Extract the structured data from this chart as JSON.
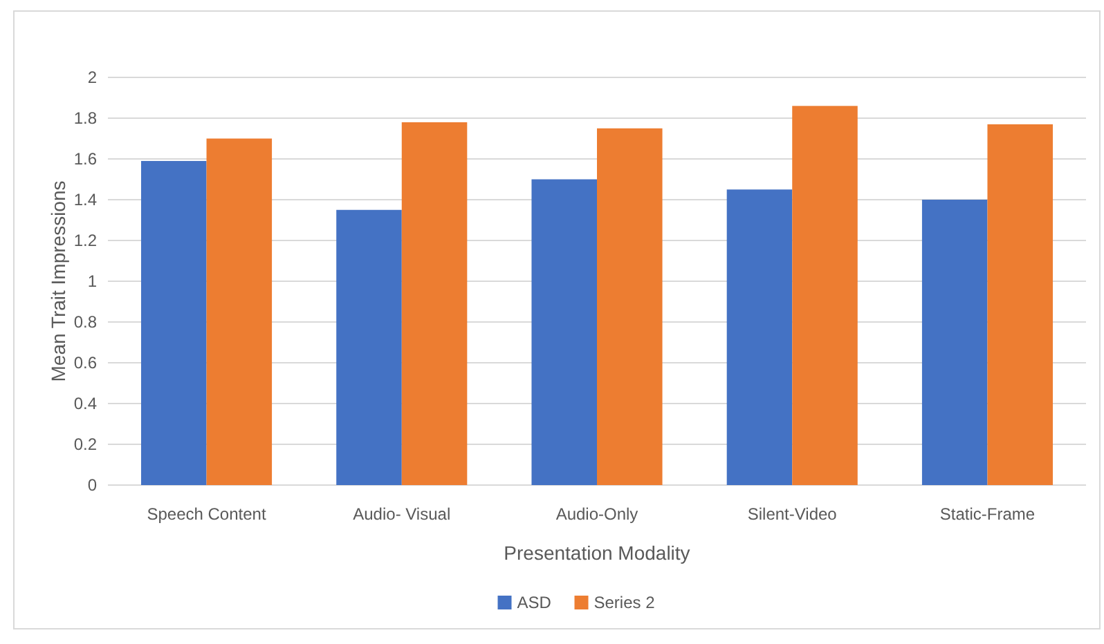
{
  "chart_data": {
    "type": "bar",
    "xlabel": "Presentation Modality",
    "ylabel": "Mean Trait Impressions",
    "categories": [
      "Speech Content",
      "Audio- Visual",
      "Audio-Only",
      "Silent-Video",
      "Static-Frame"
    ],
    "series": [
      {
        "name": "ASD",
        "color": "#4472c4",
        "values": [
          1.59,
          1.35,
          1.5,
          1.45,
          1.4
        ]
      },
      {
        "name": "Series 2",
        "color": "#ed7d31",
        "values": [
          1.7,
          1.78,
          1.75,
          1.86,
          1.77
        ]
      }
    ],
    "ylim": [
      0,
      2
    ],
    "yticks": [
      0,
      0.2,
      0.4,
      0.6,
      0.8,
      1,
      1.2,
      1.4,
      1.6,
      1.8,
      2
    ],
    "grid": "y",
    "legend": "bottom"
  }
}
